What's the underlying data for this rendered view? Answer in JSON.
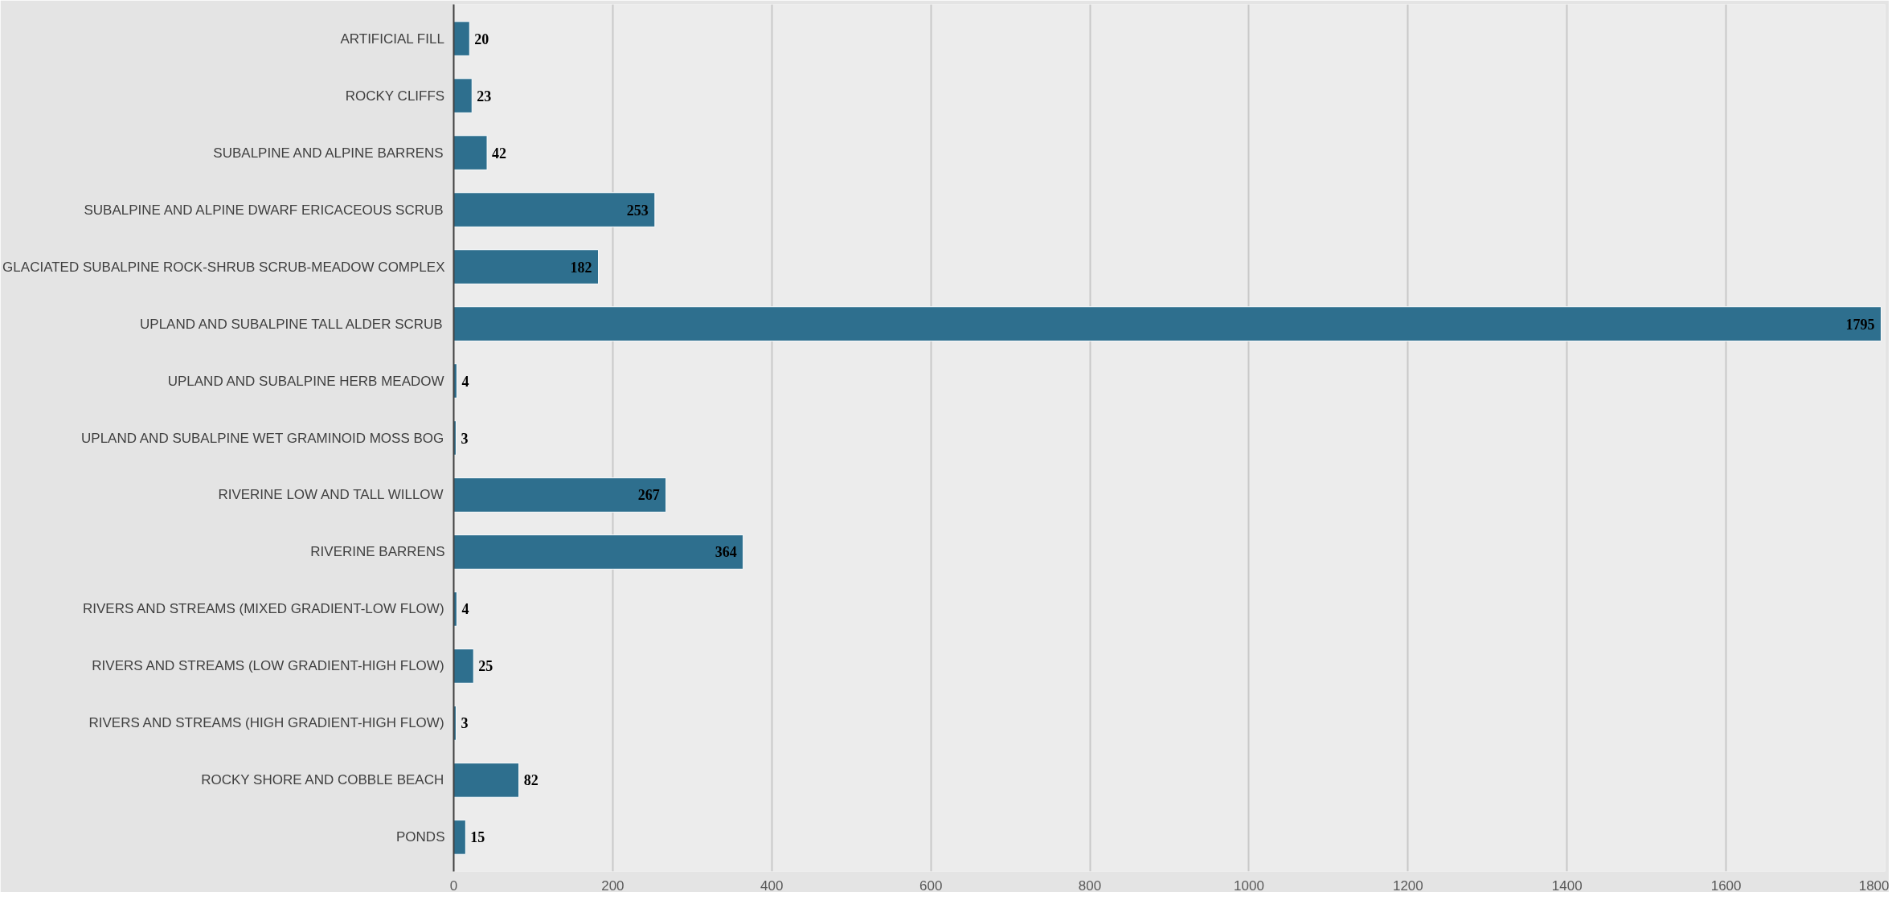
{
  "chart_data": {
    "type": "bar",
    "orientation": "horizontal",
    "categories": [
      "ARTIFICIAL FILL",
      "ROCKY CLIFFS",
      "SUBALPINE AND ALPINE BARRENS",
      "SUBALPINE AND ALPINE DWARF ERICACEOUS SCRUB",
      "GLACIATED SUBALPINE ROCK-SHRUB SCRUB-MEADOW COMPLEX",
      "UPLAND AND SUBALPINE TALL ALDER SCRUB",
      "UPLAND AND SUBALPINE HERB MEADOW",
      "UPLAND AND SUBALPINE WET GRAMINOID MOSS BOG",
      "RIVERINE LOW AND TALL WILLOW",
      "RIVERINE BARRENS",
      "RIVERS AND STREAMS (MIXED GRADIENT-LOW FLOW)",
      "RIVERS AND STREAMS (LOW GRADIENT-HIGH FLOW)",
      "RIVERS AND STREAMS (HIGH GRADIENT-HIGH FLOW)",
      "ROCKY SHORE AND COBBLE BEACH",
      "PONDS"
    ],
    "values": [
      20,
      23,
      42,
      253,
      182,
      1795,
      4,
      3,
      267,
      364,
      4,
      25,
      3,
      82,
      15
    ],
    "color": "#2e6f8e",
    "xlim": [
      0,
      1800
    ],
    "xticks": [
      0,
      200,
      400,
      600,
      800,
      1000,
      1200,
      1400,
      1600,
      1800
    ],
    "grid": "x",
    "data_labels": true
  }
}
